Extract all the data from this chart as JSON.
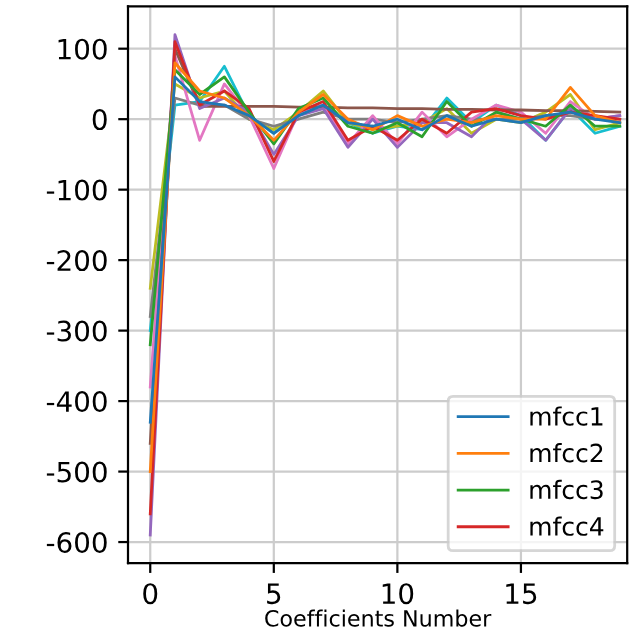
{
  "chart_data": {
    "type": "line",
    "xlabel": "Coefficients Number",
    "x": [
      0,
      1,
      2,
      3,
      4,
      5,
      6,
      7,
      8,
      9,
      10,
      11,
      12,
      13,
      14,
      15,
      16,
      17,
      18,
      19
    ],
    "xlim": [
      -0.9,
      19.3
    ],
    "xticks": [
      0,
      5,
      10,
      15
    ],
    "ylim": [
      -630,
      160
    ],
    "yticks": [
      -600,
      -500,
      -400,
      -300,
      -200,
      -100,
      0,
      100
    ],
    "grid": true,
    "legend": "bottom right",
    "line_style": "solid",
    "series": [
      {
        "name": "mfcc1",
        "color": "#1f77b4",
        "values": [
          -430,
          60,
          25,
          20,
          5,
          -20,
          5,
          20,
          -5,
          -10,
          0,
          -15,
          5,
          -10,
          0,
          -5,
          5,
          10,
          0,
          -5
        ]
      },
      {
        "name": "mfcc2",
        "color": "#ff7f0e",
        "values": [
          -500,
          80,
          40,
          30,
          5,
          -30,
          10,
          35,
          0,
          -15,
          5,
          -10,
          0,
          -5,
          5,
          0,
          0,
          45,
          5,
          -5
        ]
      },
      {
        "name": "mfcc3",
        "color": "#2ca02c",
        "values": [
          -320,
          70,
          35,
          60,
          10,
          -35,
          15,
          30,
          -10,
          -20,
          -5,
          -25,
          25,
          -10,
          10,
          0,
          -10,
          20,
          -10,
          -10
        ]
      },
      {
        "name": "mfcc4",
        "color": "#d62728",
        "values": [
          -560,
          110,
          20,
          40,
          15,
          -60,
          10,
          25,
          -30,
          -10,
          -30,
          0,
          -20,
          10,
          15,
          5,
          0,
          10,
          5,
          0
        ]
      },
      {
        "color": "#9467bd",
        "values": [
          -590,
          120,
          15,
          30,
          10,
          -50,
          5,
          15,
          -40,
          0,
          -40,
          -5,
          -5,
          -25,
          10,
          0,
          -30,
          15,
          0,
          5
        ]
      },
      {
        "color": "#8c564b",
        "values": [
          -460,
          100,
          18,
          18,
          18,
          18,
          17,
          17,
          16,
          16,
          15,
          15,
          14,
          14,
          13,
          13,
          12,
          12,
          11,
          10
        ]
      },
      {
        "color": "#e377c2",
        "values": [
          -380,
          90,
          -30,
          50,
          5,
          -70,
          10,
          20,
          -35,
          5,
          -35,
          10,
          -25,
          0,
          20,
          10,
          -20,
          25,
          0,
          5
        ]
      },
      {
        "color": "#7f7f7f",
        "values": [
          -280,
          30,
          20,
          20,
          0,
          -10,
          0,
          10,
          0,
          0,
          -5,
          0,
          5,
          0,
          0,
          0,
          5,
          5,
          0,
          0
        ]
      },
      {
        "color": "#bcbd22",
        "values": [
          -240,
          50,
          30,
          40,
          0,
          -15,
          10,
          40,
          -5,
          -15,
          -10,
          -5,
          15,
          -20,
          0,
          -5,
          10,
          35,
          -15,
          -5
        ]
      },
      {
        "color": "#17becf",
        "values": [
          -300,
          20,
          25,
          75,
          5,
          -20,
          10,
          20,
          -5,
          -20,
          -10,
          -15,
          30,
          -5,
          20,
          5,
          -30,
          15,
          -20,
          -10
        ]
      }
    ]
  }
}
